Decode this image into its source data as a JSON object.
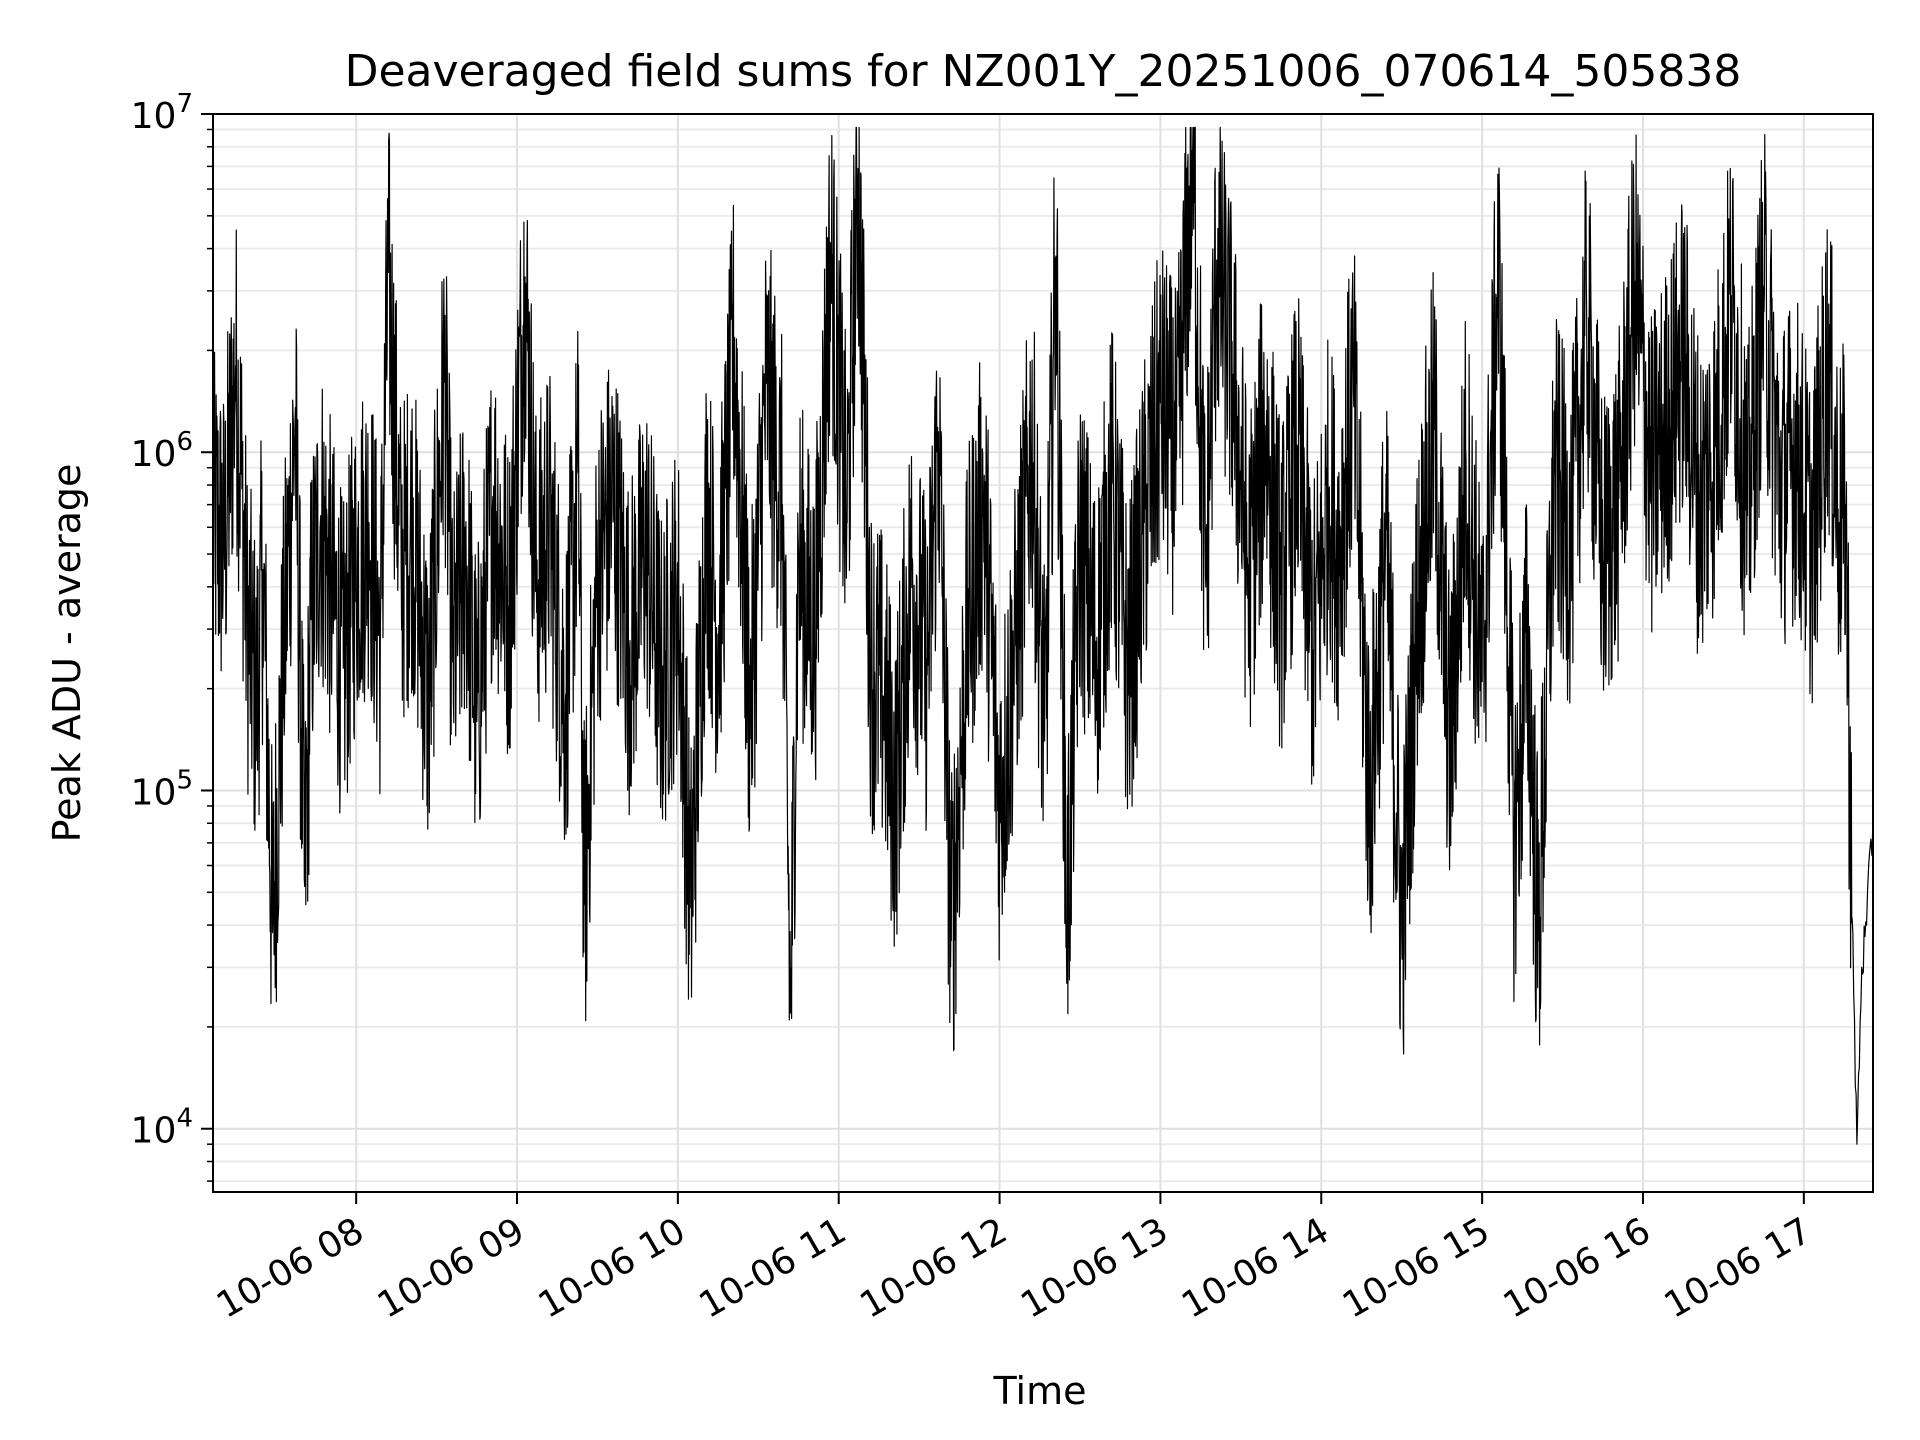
{
  "chart_data": {
    "type": "line",
    "title": "Deaveraged field sums for NZ001Y_20251006_070614_505838",
    "xlabel": "Time",
    "ylabel": "Peak ADU - average",
    "yscale": "log",
    "ylim": [
      6500,
      10000000
    ],
    "xlim_hours": [
      7.11,
      17.43
    ],
    "grid": true,
    "line_color": "#000000",
    "x_ticks": [
      {
        "hour": 8,
        "label": "10-06 08"
      },
      {
        "hour": 9,
        "label": "10-06 09"
      },
      {
        "hour": 10,
        "label": "10-06 10"
      },
      {
        "hour": 11,
        "label": "10-06 11"
      },
      {
        "hour": 12,
        "label": "10-06 12"
      },
      {
        "hour": 13,
        "label": "10-06 13"
      },
      {
        "hour": 14,
        "label": "10-06 14"
      },
      {
        "hour": 15,
        "label": "10-06 15"
      },
      {
        "hour": 16,
        "label": "10-06 16"
      },
      {
        "hour": 17,
        "label": "10-06 17"
      }
    ],
    "y_ticks": [
      {
        "value": 10000,
        "base": "10",
        "exp": "4"
      },
      {
        "value": 100000,
        "base": "10",
        "exp": "5"
      },
      {
        "value": 1000000,
        "base": "10",
        "exp": "6"
      },
      {
        "value": 10000000,
        "base": "10",
        "exp": "7"
      }
    ],
    "series": [
      {
        "name": "Peak ADU - average",
        "x_hours": [
          7.11,
          7.18,
          7.25,
          7.29,
          7.32,
          7.38,
          7.42,
          7.48,
          7.55,
          7.62,
          7.68,
          7.72,
          7.78,
          7.85,
          7.92,
          8.0,
          8.08,
          8.15,
          8.2,
          8.28,
          8.35,
          8.45,
          8.55,
          8.6,
          8.68,
          8.75,
          8.85,
          8.95,
          9.05,
          9.12,
          9.2,
          9.3,
          9.38,
          9.42,
          9.5,
          9.6,
          9.7,
          9.8,
          9.9,
          10.0,
          10.08,
          10.18,
          10.25,
          10.35,
          10.45,
          10.55,
          10.65,
          10.7,
          10.75,
          10.85,
          10.95,
          11.05,
          11.12,
          11.2,
          11.28,
          11.35,
          11.45,
          11.55,
          11.62,
          11.7,
          11.8,
          11.9,
          12.0,
          12.1,
          12.2,
          12.28,
          12.35,
          12.42,
          12.5,
          12.6,
          12.7,
          12.8,
          12.9,
          13.0,
          13.1,
          13.2,
          13.28,
          13.35,
          13.45,
          13.55,
          13.65,
          13.75,
          13.85,
          13.95,
          14.05,
          14.1,
          14.2,
          14.3,
          14.4,
          14.5,
          14.6,
          14.7,
          14.8,
          14.9,
          15.0,
          15.1,
          15.2,
          15.28,
          15.35,
          15.45,
          15.55,
          15.65,
          15.75,
          15.85,
          15.95,
          16.05,
          16.15,
          16.25,
          16.35,
          16.45,
          16.55,
          16.65,
          16.75,
          16.85,
          16.95,
          17.05,
          17.15,
          17.22,
          17.26,
          17.3,
          17.33,
          17.36,
          17.39,
          17.43
        ],
        "values": [
          650000,
          520000,
          1800000,
          780000,
          320000,
          180000,
          450000,
          38000,
          260000,
          1250000,
          52000,
          320000,
          650000,
          380000,
          230000,
          470000,
          620000,
          280000,
          3400000,
          450000,
          620000,
          180000,
          1700000,
          240000,
          510000,
          160000,
          740000,
          350000,
          3300000,
          420000,
          620000,
          180000,
          870000,
          46000,
          460000,
          720000,
          260000,
          540000,
          210000,
          380000,
          45000,
          680000,
          290000,
          2100000,
          170000,
          1600000,
          700000,
          22000,
          510000,
          280000,
          3900000,
          620000,
          6900000,
          240000,
          190000,
          95000,
          450000,
          220000,
          1150000,
          36000,
          310000,
          730000,
          92000,
          270000,
          1100000,
          140000,
          3800000,
          42000,
          560000,
          260000,
          810000,
          220000,
          620000,
          1400000,
          950000,
          7500000,
          430000,
          3700000,
          1700000,
          410000,
          1200000,
          380000,
          1050000,
          260000,
          790000,
          480000,
          1500000,
          90000,
          540000,
          38000,
          360000,
          1200000,
          130000,
          950000,
          210000,
          3400000,
          68000,
          280000,
          36000,
          870000,
          530000,
          2500000,
          480000,
          730000,
          3200000,
          820000,
          1200000,
          2000000,
          710000,
          1050000,
          2900000,
          650000,
          3100000,
          790000,
          1000000,
          540000,
          1900000,
          620000,
          700000,
          42000,
          9000,
          30000,
          40000,
          82000
        ]
      }
    ]
  }
}
